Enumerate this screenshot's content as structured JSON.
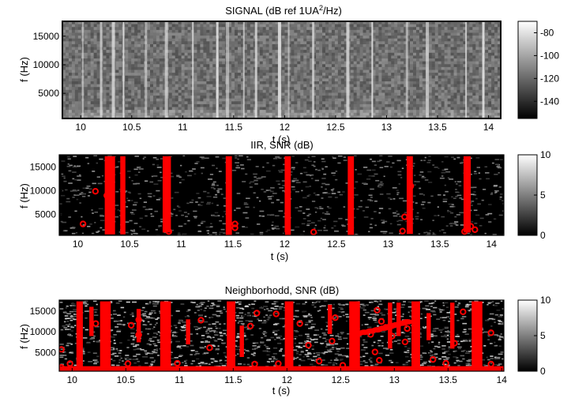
{
  "chart_data": [
    {
      "type": "heatmap",
      "title_parts": {
        "main": "SIGNAL (dB ref 1UA",
        "sup": "2",
        "tail": "/Hz)"
      },
      "xlabel": "t (s)",
      "ylabel": "f (Hz)",
      "xlim": [
        9.82,
        14.12
      ],
      "ylim": [
        600,
        17600
      ],
      "xticks": [
        10,
        10.5,
        11,
        11.5,
        12,
        12.5,
        13,
        13.5,
        14
      ],
      "xtick_labels": [
        "10",
        "10.5",
        "11",
        "11.5",
        "12",
        "12.5",
        "13",
        "13.5",
        "14"
      ],
      "yticks": [
        5000,
        10000,
        15000
      ],
      "ytick_labels": [
        "5000",
        "10000",
        "15000"
      ],
      "colorbar": {
        "range": [
          -155,
          -70
        ],
        "ticks": [
          -80,
          -100,
          -120,
          -140
        ],
        "tick_labels": [
          "-80",
          "-100",
          "-120",
          "-140"
        ],
        "colormap": "gray"
      },
      "bright_columns_t": [
        10.02,
        10.2,
        10.32,
        10.42,
        10.64,
        10.84,
        11.1,
        11.34,
        11.44,
        11.6,
        11.72,
        11.95,
        12.04,
        12.28,
        12.62,
        12.86,
        13.2,
        13.4,
        13.78,
        13.95
      ],
      "background_level_db": -118
    },
    {
      "type": "heatmap",
      "title": "IIR, SNR (dB)",
      "xlabel": "t (s)",
      "ylabel": "f (Hz)",
      "xlim": [
        9.82,
        14.12
      ],
      "ylim": [
        600,
        17600
      ],
      "xticks": [
        10,
        10.5,
        11,
        11.5,
        12,
        12.5,
        13,
        13.5,
        14
      ],
      "xtick_labels": [
        "10",
        "10.5",
        "11",
        "11.5",
        "12",
        "12.5",
        "13",
        "13.5",
        "14"
      ],
      "yticks": [
        5000,
        10000,
        15000
      ],
      "ytick_labels": [
        "5000",
        "10000",
        "15000"
      ],
      "colorbar": {
        "range": [
          0,
          10
        ],
        "ticks": [
          10,
          5,
          0
        ],
        "tick_labels": [
          "10",
          "5",
          "0"
        ],
        "colormap": "gray"
      },
      "detections": {
        "color": "#ff0000",
        "bands": [
          {
            "t0": 10.26,
            "t1": 10.36,
            "f0": 800,
            "f1": 17300
          },
          {
            "t0": 10.41,
            "t1": 10.46,
            "f0": 800,
            "f1": 17300
          },
          {
            "t0": 10.82,
            "t1": 10.9,
            "f0": 1200,
            "f1": 17300
          },
          {
            "t0": 11.43,
            "t1": 11.49,
            "f0": 600,
            "f1": 17300
          },
          {
            "t0": 12.0,
            "t1": 12.06,
            "f0": 600,
            "f1": 17300
          },
          {
            "t0": 12.61,
            "t1": 12.67,
            "f0": 600,
            "f1": 17300
          },
          {
            "t0": 13.18,
            "t1": 13.24,
            "f0": 900,
            "f1": 17300
          },
          {
            "t0": 13.73,
            "t1": 13.8,
            "f0": 1200,
            "f1": 17300
          }
        ],
        "points": [
          {
            "t": 10.05,
            "f": 3000
          },
          {
            "t": 10.17,
            "f": 9900
          },
          {
            "t": 10.28,
            "f": 9000
          },
          {
            "t": 10.32,
            "f": 4600
          },
          {
            "t": 10.86,
            "f": 15200
          },
          {
            "t": 10.88,
            "f": 1400
          },
          {
            "t": 11.52,
            "f": 2200
          },
          {
            "t": 11.52,
            "f": 3000
          },
          {
            "t": 12.28,
            "f": 1300
          },
          {
            "t": 13.14,
            "f": 1500
          },
          {
            "t": 13.16,
            "f": 4500
          },
          {
            "t": 13.22,
            "f": 11000
          },
          {
            "t": 13.8,
            "f": 2500
          },
          {
            "t": 13.84,
            "f": 1800
          },
          {
            "t": 13.74,
            "f": 1400
          }
        ]
      }
    },
    {
      "type": "heatmap",
      "title": "Neighborhodd, SNR (dB)",
      "xlabel": "t (s)",
      "ylabel": "f (Hz)",
      "xlim": [
        9.88,
        14.02
      ],
      "ylim": [
        600,
        17600
      ],
      "xticks": [
        10,
        10.5,
        11,
        11.5,
        12,
        12.5,
        13,
        13.5,
        14
      ],
      "xtick_labels": [
        "10",
        "10.5",
        "11",
        "11.5",
        "12",
        "12.5",
        "13",
        "13.5",
        "14"
      ],
      "yticks": [
        5000,
        10000,
        15000
      ],
      "ytick_labels": [
        "5000",
        "10000",
        "15000"
      ],
      "colorbar": {
        "range": [
          0,
          10
        ],
        "ticks": [
          10,
          5,
          0
        ],
        "tick_labels": [
          "10",
          "5",
          "0"
        ],
        "colormap": "gray"
      },
      "detections": {
        "color": "#ff0000",
        "baseline": {
          "f0": 600,
          "f1": 1800
        },
        "bands": [
          {
            "t0": 10.04,
            "t1": 10.1,
            "f0": 600,
            "f1": 17300
          },
          {
            "t0": 10.16,
            "t1": 10.2,
            "f0": 9000,
            "f1": 16000
          },
          {
            "t0": 10.26,
            "t1": 10.36,
            "f0": 600,
            "f1": 17300
          },
          {
            "t0": 10.6,
            "t1": 10.64,
            "f0": 7500,
            "f1": 15500
          },
          {
            "t0": 10.82,
            "t1": 10.92,
            "f0": 600,
            "f1": 17300
          },
          {
            "t0": 11.06,
            "t1": 11.1,
            "f0": 7000,
            "f1": 13000
          },
          {
            "t0": 11.44,
            "t1": 11.52,
            "f0": 600,
            "f1": 17300
          },
          {
            "t0": 11.56,
            "t1": 11.6,
            "f0": 4000,
            "f1": 11500
          },
          {
            "t0": 11.98,
            "t1": 12.06,
            "f0": 600,
            "f1": 17300
          },
          {
            "t0": 12.38,
            "t1": 12.42,
            "f0": 9500,
            "f1": 16500
          },
          {
            "t0": 12.58,
            "t1": 12.68,
            "f0": 600,
            "f1": 17300
          },
          {
            "t0": 12.94,
            "t1": 12.98,
            "f0": 6000,
            "f1": 17000
          },
          {
            "t0": 13.02,
            "t1": 13.06,
            "f0": 9000,
            "f1": 17000
          },
          {
            "t0": 13.16,
            "t1": 13.24,
            "f0": 600,
            "f1": 17300
          },
          {
            "t0": 13.3,
            "t1": 13.34,
            "f0": 8000,
            "f1": 14500
          },
          {
            "t0": 13.52,
            "t1": 13.56,
            "f0": 6000,
            "f1": 17000
          },
          {
            "t0": 13.72,
            "t1": 13.82,
            "f0": 600,
            "f1": 17300
          }
        ],
        "points": [
          {
            "t": 9.9,
            "f": 5800
          },
          {
            "t": 9.9,
            "f": 1500
          },
          {
            "t": 9.98,
            "f": 2400
          },
          {
            "t": 10.22,
            "f": 12000
          },
          {
            "t": 10.55,
            "f": 11600
          },
          {
            "t": 10.62,
            "f": 12900
          },
          {
            "t": 10.62,
            "f": 9300
          },
          {
            "t": 10.52,
            "f": 2400
          },
          {
            "t": 10.98,
            "f": 2500
          },
          {
            "t": 11.2,
            "f": 12800
          },
          {
            "t": 11.28,
            "f": 6200
          },
          {
            "t": 11.48,
            "f": 11800
          },
          {
            "t": 11.66,
            "f": 11400
          },
          {
            "t": 11.72,
            "f": 14500
          },
          {
            "t": 11.9,
            "f": 14300
          },
          {
            "t": 11.92,
            "f": 2400
          },
          {
            "t": 11.7,
            "f": 2300
          },
          {
            "t": 12.12,
            "f": 12000
          },
          {
            "t": 12.2,
            "f": 6800
          },
          {
            "t": 12.3,
            "f": 3000
          },
          {
            "t": 12.42,
            "f": 7800
          },
          {
            "t": 12.45,
            "f": 13400
          },
          {
            "t": 12.52,
            "f": 2000
          },
          {
            "t": 12.78,
            "f": 9400
          },
          {
            "t": 12.84,
            "f": 15200
          },
          {
            "t": 12.88,
            "f": 12500
          },
          {
            "t": 12.92,
            "f": 11100
          },
          {
            "t": 12.98,
            "f": 9000
          },
          {
            "t": 12.82,
            "f": 5200
          },
          {
            "t": 12.86,
            "f": 3200
          },
          {
            "t": 13.36,
            "f": 3400
          },
          {
            "t": 13.48,
            "f": 2500
          },
          {
            "t": 13.56,
            "f": 7300
          },
          {
            "t": 13.64,
            "f": 14800
          },
          {
            "t": 13.12,
            "f": 10800
          },
          {
            "t": 13.1,
            "f": 7600
          },
          {
            "t": 13.9,
            "f": 9800
          },
          {
            "t": 13.9,
            "f": 2300
          }
        ],
        "streak": [
          {
            "t": 12.66,
            "f": 9600
          },
          {
            "t": 12.72,
            "f": 9900
          },
          {
            "t": 12.78,
            "f": 10200
          },
          {
            "t": 12.84,
            "f": 10500
          },
          {
            "t": 12.9,
            "f": 10900
          },
          {
            "t": 12.96,
            "f": 11300
          },
          {
            "t": 13.02,
            "f": 11700
          },
          {
            "t": 13.08,
            "f": 12100
          },
          {
            "t": 13.12,
            "f": 12400
          }
        ]
      }
    }
  ]
}
